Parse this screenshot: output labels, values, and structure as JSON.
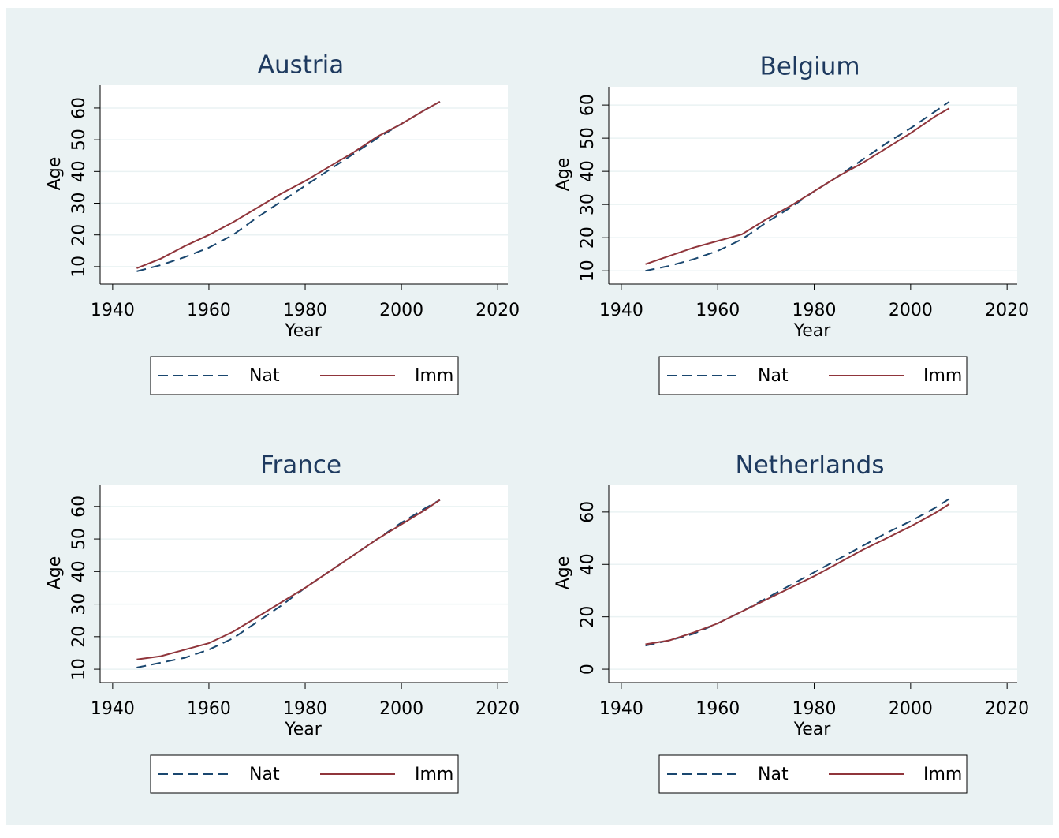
{
  "chart_data": [
    {
      "type": "line",
      "title": "Austria",
      "x_label": "Year",
      "y_label": "Age",
      "x": [
        1945,
        1950,
        1955,
        1960,
        1965,
        1970,
        1975,
        1980,
        1985,
        1990,
        1995,
        2000,
        2005,
        2008
      ],
      "series": [
        {
          "name": "Nat",
          "color": "#1a476f",
          "dashed": true,
          "values": [
            8.5,
            10.5,
            13,
            16,
            20,
            25.5,
            30.5,
            35.5,
            40.5,
            45.5,
            50.5,
            55,
            59.5,
            62
          ]
        },
        {
          "name": "Imm",
          "color": "#90353b",
          "dashed": false,
          "values": [
            9.5,
            12.5,
            16.5,
            20,
            24,
            28.5,
            33,
            37,
            41.5,
            46,
            51,
            55,
            59.5,
            62
          ]
        }
      ],
      "xlim": [
        1937.4,
        2022.1
      ],
      "xticks": [
        1940,
        1960,
        1980,
        2000,
        2020
      ],
      "ylim": [
        4.5,
        67.2
      ],
      "yticks": [
        10,
        20,
        30,
        40,
        50,
        60
      ],
      "grid": true
    },
    {
      "type": "line",
      "title": "Belgium",
      "x_label": "Year",
      "y_label": "Age",
      "x": [
        1945,
        1950,
        1955,
        1960,
        1965,
        1970,
        1975,
        1980,
        1985,
        1990,
        1995,
        2000,
        2005,
        2008
      ],
      "series": [
        {
          "name": "Nat",
          "color": "#1a476f",
          "dashed": true,
          "values": [
            10,
            11.5,
            13.5,
            16,
            19.5,
            24.5,
            29,
            34,
            38.5,
            43.5,
            48.5,
            53,
            58,
            61
          ]
        },
        {
          "name": "Imm",
          "color": "#90353b",
          "dashed": false,
          "values": [
            12,
            14.5,
            17,
            19,
            21,
            25.5,
            29.5,
            34,
            38.5,
            42.5,
            47,
            51.5,
            56.5,
            59
          ]
        }
      ],
      "xlim": [
        1937.4,
        2022.1
      ],
      "xticks": [
        1940,
        1960,
        1980,
        2000,
        2020
      ],
      "ylim": [
        6,
        65.5
      ],
      "yticks": [
        10,
        20,
        30,
        40,
        50,
        60
      ],
      "grid": true
    },
    {
      "type": "line",
      "title": "France",
      "x_label": "Year",
      "y_label": "Age",
      "x": [
        1945,
        1950,
        1955,
        1960,
        1965,
        1970,
        1975,
        1980,
        1985,
        1990,
        1995,
        2000,
        2005,
        2008
      ],
      "series": [
        {
          "name": "Nat",
          "color": "#1a476f",
          "dashed": true,
          "values": [
            10.5,
            12,
            13.5,
            16,
            19.5,
            24.5,
            29.5,
            35,
            40,
            45,
            50,
            55,
            59.5,
            62
          ]
        },
        {
          "name": "Imm",
          "color": "#90353b",
          "dashed": false,
          "values": [
            13,
            14,
            16,
            18,
            21.5,
            26,
            30.5,
            35,
            40,
            45,
            50,
            54.5,
            59,
            62
          ]
        }
      ],
      "xlim": [
        1937.4,
        2022.1
      ],
      "xticks": [
        1940,
        1960,
        1980,
        2000,
        2020
      ],
      "ylim": [
        5.9,
        66.5
      ],
      "yticks": [
        10,
        20,
        30,
        40,
        50,
        60
      ],
      "grid": true
    },
    {
      "type": "line",
      "title": "Netherlands",
      "x_label": "Year",
      "y_label": "Age",
      "x": [
        1945,
        1950,
        1955,
        1960,
        1965,
        1970,
        1975,
        1980,
        1985,
        1990,
        1995,
        2000,
        2005,
        2008
      ],
      "series": [
        {
          "name": "Nat",
          "color": "#1a476f",
          "dashed": true,
          "values": [
            9,
            11,
            13.5,
            17.5,
            22,
            27,
            32,
            37,
            42,
            47,
            52,
            56.5,
            61.5,
            65
          ]
        },
        {
          "name": "Imm",
          "color": "#90353b",
          "dashed": false,
          "values": [
            9.5,
            11,
            14,
            17.5,
            22,
            26.5,
            31,
            35.5,
            40.5,
            45.5,
            50,
            54.5,
            59.5,
            63
          ]
        }
      ],
      "xlim": [
        1937.4,
        2022.1
      ],
      "xticks": [
        1940,
        1960,
        1980,
        2000,
        2020
      ],
      "ylim": [
        -5.1,
        70.2
      ],
      "yticks": [
        0,
        20,
        40,
        60
      ],
      "grid": true
    }
  ]
}
